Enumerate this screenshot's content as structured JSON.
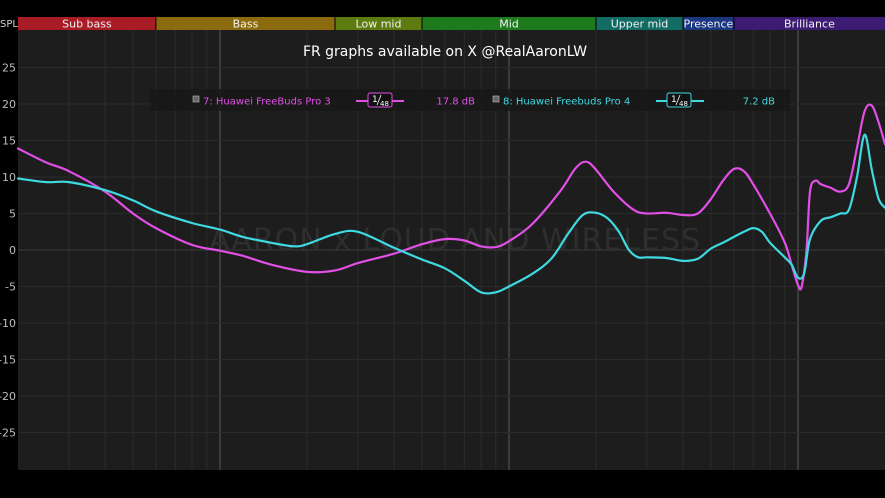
{
  "chart_data": {
    "type": "line",
    "title": "FR graphs available on X @RealAaronLW",
    "watermark": "AARON x LOUD AND WIRELESS",
    "ylabel": "SPL",
    "ylim": [
      -30,
      30
    ],
    "yticks": [
      25,
      20,
      15,
      10,
      5,
      0,
      -5,
      -10,
      -15,
      -20,
      -25
    ],
    "xscale": "log",
    "xlim": [
      20,
      20000
    ],
    "grid": true,
    "bands": [
      {
        "name": "Sub bass",
        "from": 20,
        "to": 60,
        "color": "#a81c26"
      },
      {
        "name": "Bass",
        "from": 60,
        "to": 250,
        "color": "#8c6a0e"
      },
      {
        "name": "Low mid",
        "from": 250,
        "to": 500,
        "color": "#5d7b10"
      },
      {
        "name": "Mid",
        "from": 500,
        "to": 2000,
        "color": "#1d7a1d"
      },
      {
        "name": "Upper mid",
        "from": 2000,
        "to": 4000,
        "color": "#126c63"
      },
      {
        "name": "Presence",
        "from": 4000,
        "to": 6000,
        "color": "#1a3680"
      },
      {
        "name": "Brilliance",
        "from": 6000,
        "to": 20000,
        "color": "#3c1b72"
      }
    ],
    "series": [
      {
        "name": "7: Huawei FreeBuds Pro 3",
        "smoothing": "1/48",
        "value": "17.8 dB",
        "color": "#e24fe6",
        "points": [
          [
            20,
            13.9
          ],
          [
            25,
            12
          ],
          [
            30,
            10.8
          ],
          [
            40,
            8
          ],
          [
            50,
            5
          ],
          [
            60,
            3
          ],
          [
            80,
            0.7
          ],
          [
            100,
            -0.1
          ],
          [
            120,
            -0.8
          ],
          [
            150,
            -2
          ],
          [
            200,
            -3
          ],
          [
            250,
            -2.8
          ],
          [
            300,
            -1.8
          ],
          [
            400,
            -0.5
          ],
          [
            500,
            0.8
          ],
          [
            600,
            1.5
          ],
          [
            700,
            1.3
          ],
          [
            800,
            0.5
          ],
          [
            900,
            0.4
          ],
          [
            1000,
            1.2
          ],
          [
            1200,
            3.5
          ],
          [
            1500,
            8
          ],
          [
            1700,
            11.2
          ],
          [
            1850,
            12.1
          ],
          [
            2000,
            11
          ],
          [
            2300,
            8
          ],
          [
            2700,
            5.5
          ],
          [
            3000,
            5
          ],
          [
            3500,
            5.1
          ],
          [
            4000,
            4.8
          ],
          [
            4500,
            5
          ],
          [
            5000,
            7
          ],
          [
            5500,
            9.5
          ],
          [
            6000,
            11.1
          ],
          [
            6500,
            10.8
          ],
          [
            7000,
            9
          ],
          [
            8000,
            5
          ],
          [
            9000,
            1
          ],
          [
            9500,
            -2
          ],
          [
            10000,
            -4.8
          ],
          [
            10300,
            -5
          ],
          [
            10700,
            0
          ],
          [
            11000,
            8
          ],
          [
            11500,
            9.5
          ],
          [
            12000,
            9
          ],
          [
            13000,
            8.5
          ],
          [
            14000,
            8
          ],
          [
            15000,
            9
          ],
          [
            16000,
            14
          ],
          [
            17000,
            19
          ],
          [
            18000,
            19.8
          ],
          [
            19000,
            17.5
          ],
          [
            20000,
            14.5
          ]
        ]
      },
      {
        "name": "8: Huawei Freebuds Pro 4",
        "smoothing": "1/48",
        "value": "7.2 dB",
        "color": "#3fd9e0",
        "points": [
          [
            20,
            9.8
          ],
          [
            25,
            9.3
          ],
          [
            30,
            9.3
          ],
          [
            40,
            8.2
          ],
          [
            50,
            6.8
          ],
          [
            60,
            5.3
          ],
          [
            80,
            3.7
          ],
          [
            100,
            2.8
          ],
          [
            120,
            1.8
          ],
          [
            150,
            1
          ],
          [
            180,
            0.5
          ],
          [
            200,
            0.8
          ],
          [
            250,
            2.2
          ],
          [
            300,
            2.5
          ],
          [
            400,
            0.3
          ],
          [
            500,
            -1.3
          ],
          [
            600,
            -2.5
          ],
          [
            700,
            -4.2
          ],
          [
            800,
            -5.8
          ],
          [
            900,
            -5.8
          ],
          [
            1000,
            -5
          ],
          [
            1200,
            -3.3
          ],
          [
            1400,
            -1.2
          ],
          [
            1600,
            2.2
          ],
          [
            1800,
            4.8
          ],
          [
            2000,
            5.1
          ],
          [
            2200,
            4.3
          ],
          [
            2400,
            2.5
          ],
          [
            2600,
            0
          ],
          [
            2800,
            -1
          ],
          [
            3000,
            -1
          ],
          [
            3500,
            -1.1
          ],
          [
            4000,
            -1.5
          ],
          [
            4500,
            -1.2
          ],
          [
            5000,
            0.2
          ],
          [
            5500,
            1
          ],
          [
            6000,
            1.8
          ],
          [
            6500,
            2.5
          ],
          [
            7000,
            3
          ],
          [
            7500,
            2.5
          ],
          [
            8000,
            1
          ],
          [
            9000,
            -1
          ],
          [
            9500,
            -2
          ],
          [
            10000,
            -3.8
          ],
          [
            10500,
            -3.2
          ],
          [
            11000,
            1.5
          ],
          [
            12000,
            4
          ],
          [
            13000,
            4.5
          ],
          [
            14000,
            5
          ],
          [
            15000,
            5.5
          ],
          [
            16000,
            10
          ],
          [
            17000,
            15.8
          ],
          [
            18000,
            11
          ],
          [
            19000,
            7
          ],
          [
            20000,
            5.8
          ]
        ]
      }
    ],
    "legend": {
      "placement": "top"
    }
  }
}
